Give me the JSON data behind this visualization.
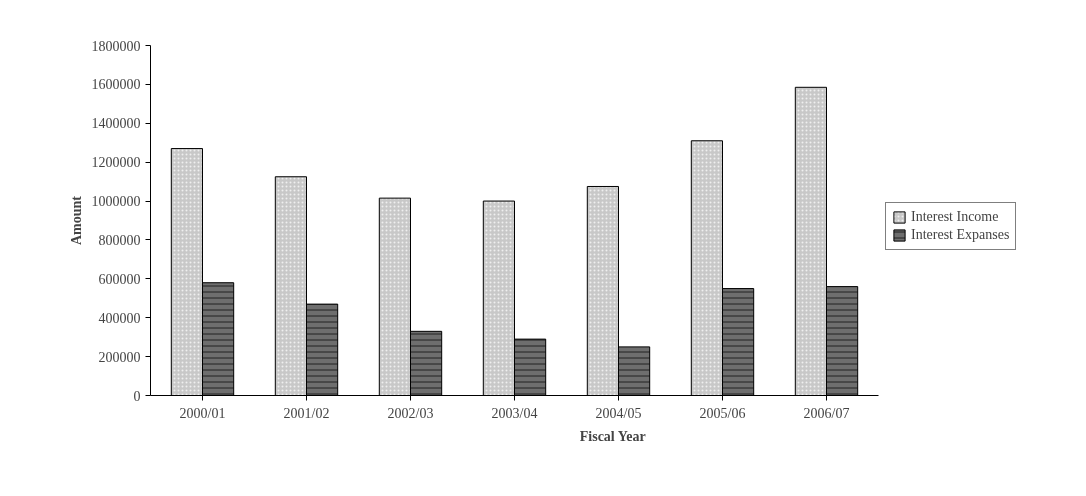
{
  "chart_data": {
    "type": "bar",
    "xlabel": "Fiscal Year",
    "ylabel": "Amount",
    "categories": [
      "2000/01",
      "2001/02",
      "2002/03",
      "2003/04",
      "2004/05",
      "2005/06",
      "2006/07"
    ],
    "series": [
      {
        "name": "Interest Income",
        "color": "#c8c8c8",
        "values": [
          1270000,
          1125000,
          1015000,
          1000000,
          1075000,
          1310000,
          1585000
        ]
      },
      {
        "name": "Interest Expanses",
        "color": "#6e6e6e",
        "values": [
          580000,
          470000,
          330000,
          290000,
          250000,
          550000,
          560000
        ]
      }
    ],
    "ylim": [
      0,
      1800000
    ],
    "yticks": [
      0,
      200000,
      400000,
      600000,
      800000,
      1000000,
      1200000,
      1400000,
      1600000,
      1800000
    ],
    "grid": false,
    "legend": "right"
  }
}
